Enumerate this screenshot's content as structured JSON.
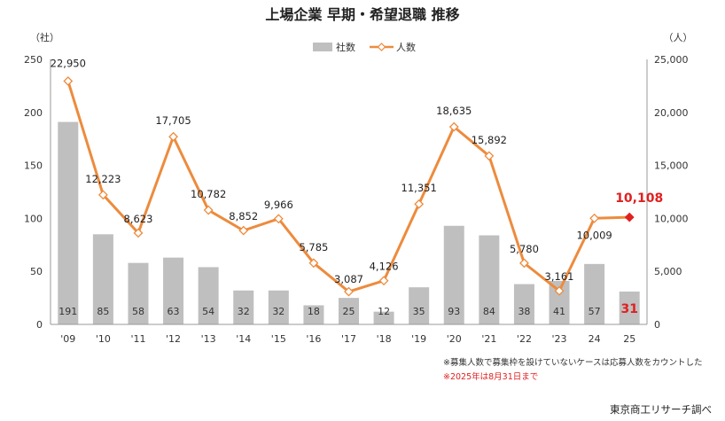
{
  "title": "上場企業 早期・希望退職 推移",
  "colors": {
    "bar": "#bfbfbf",
    "line": "#ed8b3d",
    "highlight": "#e02020",
    "axis": "#999999"
  },
  "legend": {
    "bars": "社数",
    "line": "人数"
  },
  "left_unit": "（社）",
  "right_unit": "（人）",
  "chart_data": {
    "type": "bar",
    "categories": [
      "'09",
      "'10",
      "'11",
      "'12",
      "'13",
      "'14",
      "'15",
      "'16",
      "'17",
      "'18",
      "'19",
      "'20",
      "'21",
      "'22",
      "'23",
      "24",
      "25"
    ],
    "series": [
      {
        "name": "社数",
        "type": "bar",
        "axis": "left",
        "values": [
          191,
          85,
          58,
          63,
          54,
          32,
          32,
          18,
          25,
          12,
          35,
          93,
          84,
          38,
          41,
          57,
          31
        ]
      },
      {
        "name": "人数",
        "type": "line",
        "axis": "right",
        "values": [
          22950,
          12223,
          8623,
          17705,
          10782,
          8852,
          9966,
          5785,
          3087,
          4126,
          11351,
          18635,
          15892,
          5780,
          3161,
          10009,
          10108
        ]
      }
    ],
    "value_labels": [
      "22,950",
      "12,223",
      "8,623",
      "17,705",
      "10,782",
      "8,852",
      "9,966",
      "5,785",
      "3,087",
      "4,126",
      "11,351",
      "18,635",
      "15,892",
      "5,780",
      "3,161",
      "10,009",
      "10,108"
    ],
    "highlight_index": 16,
    "left_axis": {
      "ylim": [
        0,
        250
      ],
      "ticks": [
        "0",
        "50",
        "100",
        "150",
        "200",
        "250"
      ]
    },
    "right_axis": {
      "ylim": [
        0,
        25000
      ],
      "ticks": [
        "0",
        "5,000",
        "10,000",
        "15,000",
        "20,000",
        "25,000"
      ]
    },
    "grid": false,
    "legend_position": "top-center"
  },
  "notes": [
    "※募集人数で募集枠を設けていないケースは応募人数をカウントした",
    "※2025年は8月31日まで"
  ],
  "source": "東京商工リサーチ調べ"
}
